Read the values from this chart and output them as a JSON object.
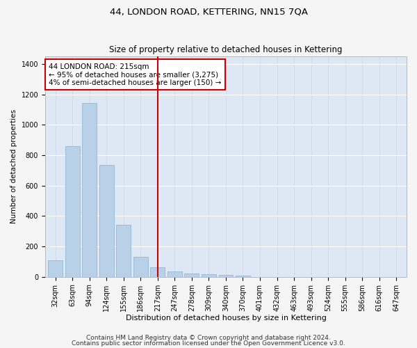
{
  "title": "44, LONDON ROAD, KETTERING, NN15 7QA",
  "subtitle": "Size of property relative to detached houses in Kettering",
  "xlabel": "Distribution of detached houses by size in Kettering",
  "ylabel": "Number of detached properties",
  "categories": [
    "32sqm",
    "63sqm",
    "94sqm",
    "124sqm",
    "155sqm",
    "186sqm",
    "217sqm",
    "247sqm",
    "278sqm",
    "309sqm",
    "340sqm",
    "370sqm",
    "401sqm",
    "432sqm",
    "463sqm",
    "493sqm",
    "524sqm",
    "555sqm",
    "586sqm",
    "616sqm",
    "647sqm"
  ],
  "values": [
    107,
    860,
    1143,
    735,
    340,
    130,
    65,
    37,
    23,
    17,
    13,
    8,
    0,
    0,
    0,
    0,
    0,
    0,
    0,
    0,
    0
  ],
  "bar_color": "#b8d0e8",
  "bar_edge_color": "#8ab0cc",
  "background_color": "#dde8f4",
  "grid_color": "#ffffff",
  "property_line_x": 6,
  "property_line_color": "#cc0000",
  "annotation_text": "44 LONDON ROAD: 215sqm\n← 95% of detached houses are smaller (3,275)\n4% of semi-detached houses are larger (150) →",
  "annotation_box_color": "#cc0000",
  "ylim": [
    0,
    1450
  ],
  "yticks": [
    0,
    200,
    400,
    600,
    800,
    1000,
    1200,
    1400
  ],
  "footer_line1": "Contains HM Land Registry data © Crown copyright and database right 2024.",
  "footer_line2": "Contains public sector information licensed under the Open Government Licence v3.0.",
  "title_fontsize": 9.5,
  "subtitle_fontsize": 8.5,
  "xlabel_fontsize": 8,
  "ylabel_fontsize": 7.5,
  "tick_fontsize": 7,
  "annotation_fontsize": 7.5,
  "footer_fontsize": 6.5,
  "fig_facecolor": "#f5f5f5"
}
